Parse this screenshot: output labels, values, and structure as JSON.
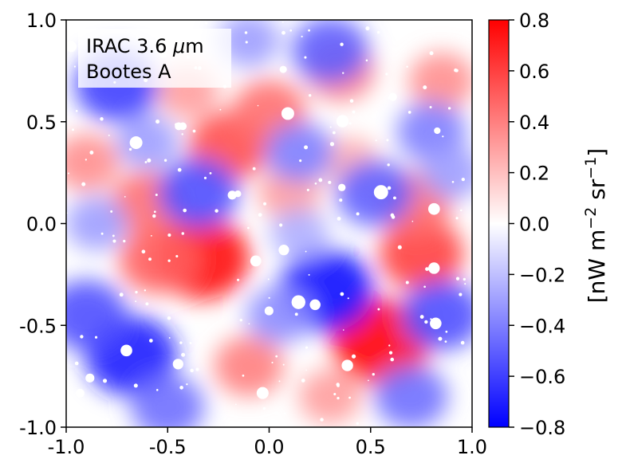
{
  "chart_data": {
    "type": "heatmap",
    "title": "",
    "legend_box": {
      "line1_prefix": "IRAC 3.6 ",
      "line1_unit_symbol": "μ",
      "line1_unit_suffix": "m",
      "line2": "Bootes A",
      "placement": "top-left"
    },
    "xlim": [
      -1.0,
      1.0
    ],
    "ylim": [
      -1.0,
      1.0
    ],
    "x_ticks": [
      -1.0,
      -0.5,
      0.0,
      0.5,
      1.0
    ],
    "x_tick_labels": [
      "-1.0",
      "-0.5",
      "0.0",
      "0.5",
      "1.0"
    ],
    "y_ticks": [
      1.0,
      0.5,
      0.0,
      -0.5,
      -1.0
    ],
    "y_tick_labels": [
      "1.0",
      "0.5",
      "0.0",
      "-0.5",
      "-1.0"
    ],
    "colorbar": {
      "colormap": "bwr",
      "vmin": -0.8,
      "vmax": 0.8,
      "ticks": [
        0.8,
        0.6,
        0.4,
        0.2,
        0.0,
        -0.2,
        -0.4,
        -0.6,
        -0.8
      ],
      "tick_labels": [
        "0.8",
        "0.6",
        "0.4",
        "0.2",
        "0.0",
        "−0.2",
        "−0.4",
        "−0.6",
        "−0.8"
      ],
      "label_prefix": "[nW m",
      "label_exp1": "−2",
      "label_mid": " sr",
      "label_exp2": "−1",
      "label_suffix": "]"
    },
    "features": [
      {
        "x": -0.33,
        "y": -0.17,
        "value": 0.75
      },
      {
        "x": 0.55,
        "y": -0.58,
        "value": 0.8
      },
      {
        "x": -0.2,
        "y": 0.38,
        "value": 0.55
      },
      {
        "x": 0.0,
        "y": 0.55,
        "value": 0.45
      },
      {
        "x": -0.55,
        "y": -0.18,
        "value": 0.5
      },
      {
        "x": 0.75,
        "y": -0.15,
        "value": 0.6
      },
      {
        "x": 0.72,
        "y": 0.1,
        "value": 0.45
      },
      {
        "x": -0.9,
        "y": 0.3,
        "value": 0.35
      },
      {
        "x": 0.35,
        "y": 0.75,
        "value": 0.4
      },
      {
        "x": -0.1,
        "y": -0.7,
        "value": 0.4
      },
      {
        "x": 0.85,
        "y": 0.7,
        "value": 0.35
      },
      {
        "x": 0.1,
        "y": 0.15,
        "value": 0.3
      },
      {
        "x": -0.4,
        "y": 0.65,
        "value": 0.3
      },
      {
        "x": 0.4,
        "y": 0.3,
        "value": 0.25
      },
      {
        "x": -0.6,
        "y": 0.1,
        "value": 0.45
      },
      {
        "x": 0.3,
        "y": -0.85,
        "value": 0.3
      },
      {
        "x": 0.28,
        "y": -0.33,
        "value": -0.75
      },
      {
        "x": -0.68,
        "y": -0.65,
        "value": -0.7
      },
      {
        "x": -0.35,
        "y": 0.15,
        "value": -0.55
      },
      {
        "x": 0.3,
        "y": 0.85,
        "value": -0.5
      },
      {
        "x": -0.75,
        "y": 0.68,
        "value": -0.6
      },
      {
        "x": 0.52,
        "y": 0.15,
        "value": -0.5
      },
      {
        "x": 0.85,
        "y": -0.45,
        "value": -0.55
      },
      {
        "x": -0.9,
        "y": -0.45,
        "value": -0.55
      },
      {
        "x": -0.5,
        "y": -0.9,
        "value": -0.45
      },
      {
        "x": 0.7,
        "y": -0.85,
        "value": -0.45
      },
      {
        "x": 0.15,
        "y": 0.35,
        "value": -0.4
      },
      {
        "x": 0.05,
        "y": -0.45,
        "value": -0.35
      },
      {
        "x": -0.6,
        "y": 0.4,
        "value": -0.3
      },
      {
        "x": 0.8,
        "y": 0.45,
        "value": -0.4
      },
      {
        "x": -0.85,
        "y": 0.0,
        "value": -0.3
      },
      {
        "x": 0.15,
        "y": -0.05,
        "value": -0.25
      },
      {
        "x": -0.1,
        "y": 0.9,
        "value": -0.3
      },
      {
        "x": 0.9,
        "y": 0.25,
        "value": -0.3
      }
    ]
  }
}
